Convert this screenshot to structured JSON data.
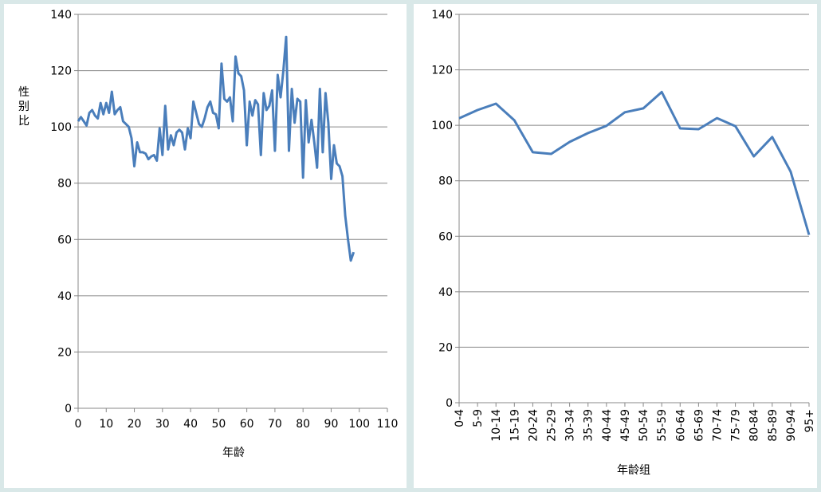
{
  "chart_data": [
    {
      "type": "line",
      "xlabel": "年龄",
      "ylabel": "性别比",
      "xlim": [
        0,
        110
      ],
      "ylim": [
        0,
        140
      ],
      "x_ticks": [
        0,
        10,
        20,
        30,
        40,
        50,
        60,
        70,
        80,
        90,
        100,
        110
      ],
      "y_ticks": [
        0,
        20,
        40,
        60,
        80,
        100,
        120,
        140
      ],
      "grid": "horizontal",
      "line_color": "#4a7ebb",
      "series": [
        {
          "x": [
            0,
            1,
            2,
            3,
            4,
            5,
            6,
            7,
            8,
            9,
            10,
            11,
            12,
            13,
            14,
            15,
            16,
            17,
            18,
            19,
            20,
            21,
            22,
            23,
            24,
            25,
            26,
            27,
            28,
            29,
            30,
            31,
            32,
            33,
            34,
            35,
            36,
            37,
            38,
            39,
            40,
            41,
            42,
            43,
            44,
            45,
            46,
            47,
            48,
            49,
            50,
            51,
            52,
            53,
            54,
            55,
            56,
            57,
            58,
            59,
            60,
            61,
            62,
            63,
            64,
            65,
            66,
            67,
            68,
            69,
            70,
            71,
            72,
            73,
            74,
            75,
            76,
            77,
            78,
            79,
            80,
            81,
            82,
            83,
            84,
            85,
            86,
            87,
            88,
            89,
            90,
            91,
            92,
            93,
            94,
            95,
            96,
            97,
            98
          ],
          "y": [
            102,
            103.5,
            102,
            100.5,
            105,
            106,
            104,
            103,
            108.5,
            104.5,
            108.5,
            105,
            112.5,
            104.5,
            106,
            107,
            102,
            101,
            100,
            96,
            86,
            94.5,
            91,
            91,
            90.5,
            88.5,
            89.5,
            90,
            88,
            99.5,
            90,
            107.5,
            92,
            97,
            93.5,
            98,
            99,
            98,
            92,
            99.5,
            96,
            109,
            105,
            101,
            100,
            103,
            107,
            109,
            105,
            104.5,
            99.5,
            122.5,
            110,
            109,
            110.5,
            102,
            125,
            119,
            118,
            113,
            93.5,
            109,
            104,
            109.5,
            108,
            90,
            112,
            106,
            107.5,
            113,
            91.5,
            118.5,
            110.5,
            120,
            132,
            91.5,
            113.5,
            101.5,
            110,
            109,
            82,
            109.5,
            94.5,
            102.5,
            94.5,
            85.5,
            113.5,
            91,
            112,
            101.5,
            81.5,
            93.5,
            87,
            86,
            82.5,
            68.5,
            60,
            52.5,
            55.5
          ]
        }
      ]
    },
    {
      "type": "line",
      "xlabel": "年龄组",
      "ylabel": "",
      "ylim": [
        0,
        140
      ],
      "y_ticks": [
        0,
        20,
        40,
        60,
        80,
        100,
        120,
        140
      ],
      "grid": "horizontal",
      "line_color": "#4a7ebb",
      "categories": [
        "0-4",
        "5-9",
        "10-14",
        "15-19",
        "20-24",
        "25-29",
        "30-34",
        "35-39",
        "40-44",
        "45-49",
        "50-54",
        "55-59",
        "60-64",
        "65-69",
        "70-74",
        "75-79",
        "80-84",
        "85-89",
        "90-94",
        "95+"
      ],
      "series": [
        {
          "values": [
            102.5,
            105.5,
            107.8,
            101.8,
            90.3,
            89.7,
            94,
            97.2,
            99.8,
            104.7,
            106.1,
            112,
            98.9,
            98.6,
            102.6,
            99.7,
            88.8,
            95.8,
            83.3,
            60.5
          ]
        }
      ]
    }
  ]
}
